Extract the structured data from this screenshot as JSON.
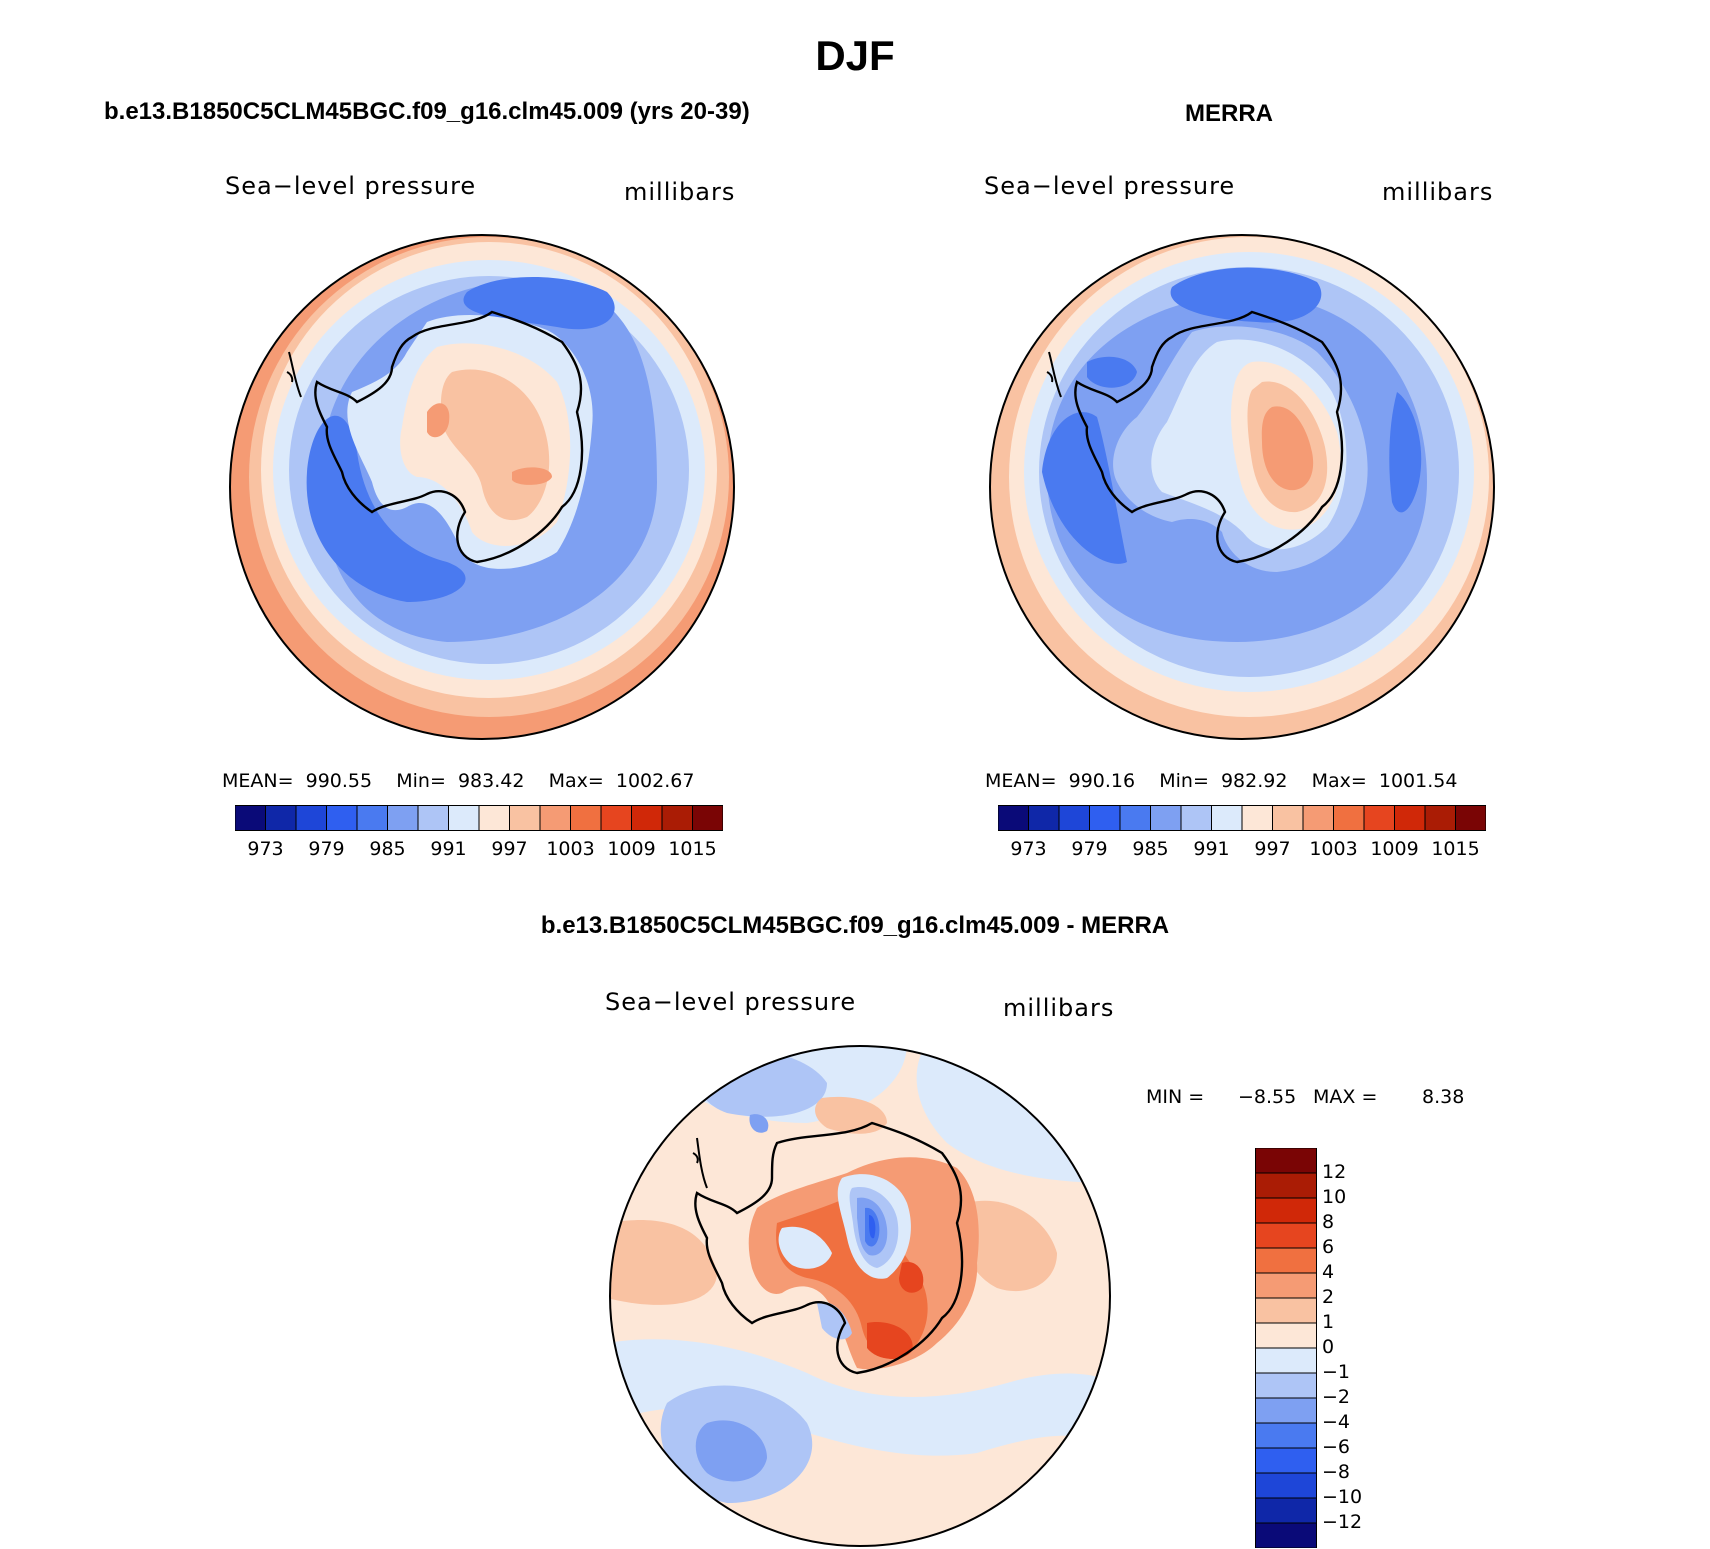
{
  "figure": {
    "title": "DJF"
  },
  "palette": {
    "full": [
      "#0a0a78",
      "#0f27a8",
      "#1e46d8",
      "#2f5ff0",
      "#4a7af0",
      "#7ea0f2",
      "#aec5f6",
      "#dceafb",
      "#fde7d7",
      "#f9c2a2",
      "#f59b74",
      "#f07040",
      "#e6451f",
      "#d02808",
      "#aa1c05",
      "#7a0505"
    ],
    "map_pressure_levels": [
      "#4a7af0",
      "#6e93f2",
      "#9fb9f5",
      "#c5d8f9",
      "#dceafb",
      "#fde7d7",
      "#f9c2a2",
      "#f59b74"
    ]
  },
  "panels": {
    "left": {
      "title": "b.e13.B1850C5CLM45BGC.f09_g16.clm45.009 (yrs 20-39)",
      "variable": "Sea−level pressure",
      "units": "millibars",
      "stats": "MEAN=  990.55    Min=  983.42    Max=  1002.67",
      "colorbar_ticks": [
        "973",
        "979",
        "985",
        "991",
        "997",
        "1003",
        "1009",
        "1015"
      ]
    },
    "right": {
      "title": "MERRA",
      "variable": "Sea−level pressure",
      "units": "millibars",
      "stats": "MEAN=  990.16    Min=  982.92    Max=  1001.54",
      "colorbar_ticks": [
        "973",
        "979",
        "985",
        "991",
        "997",
        "1003",
        "1009",
        "1015"
      ]
    },
    "diff": {
      "title": "b.e13.B1850C5CLM45BGC.f09_g16.clm45.009 - MERRA",
      "variable": "Sea−level pressure",
      "units": "millibars",
      "min_label": "MIN =",
      "min_value": "−8.55",
      "max_label": "MAX =",
      "max_value": "8.38",
      "colorbar_levels": [
        "12",
        "10",
        "8",
        "6",
        "4",
        "2",
        "1",
        "0",
        "−1",
        "−2",
        "−4",
        "−6",
        "−8",
        "−10",
        "−12"
      ],
      "colorbar_colors": [
        "#7a0505",
        "#aa1c05",
        "#d02808",
        "#e6451f",
        "#f07040",
        "#f59b74",
        "#f9c2a2",
        "#fde7d7",
        "#dceafb",
        "#aec5f6",
        "#7ea0f2",
        "#4a7af0",
        "#2f5ff0",
        "#1e46d8",
        "#0f27a8",
        "#0a0a78"
      ]
    }
  }
}
